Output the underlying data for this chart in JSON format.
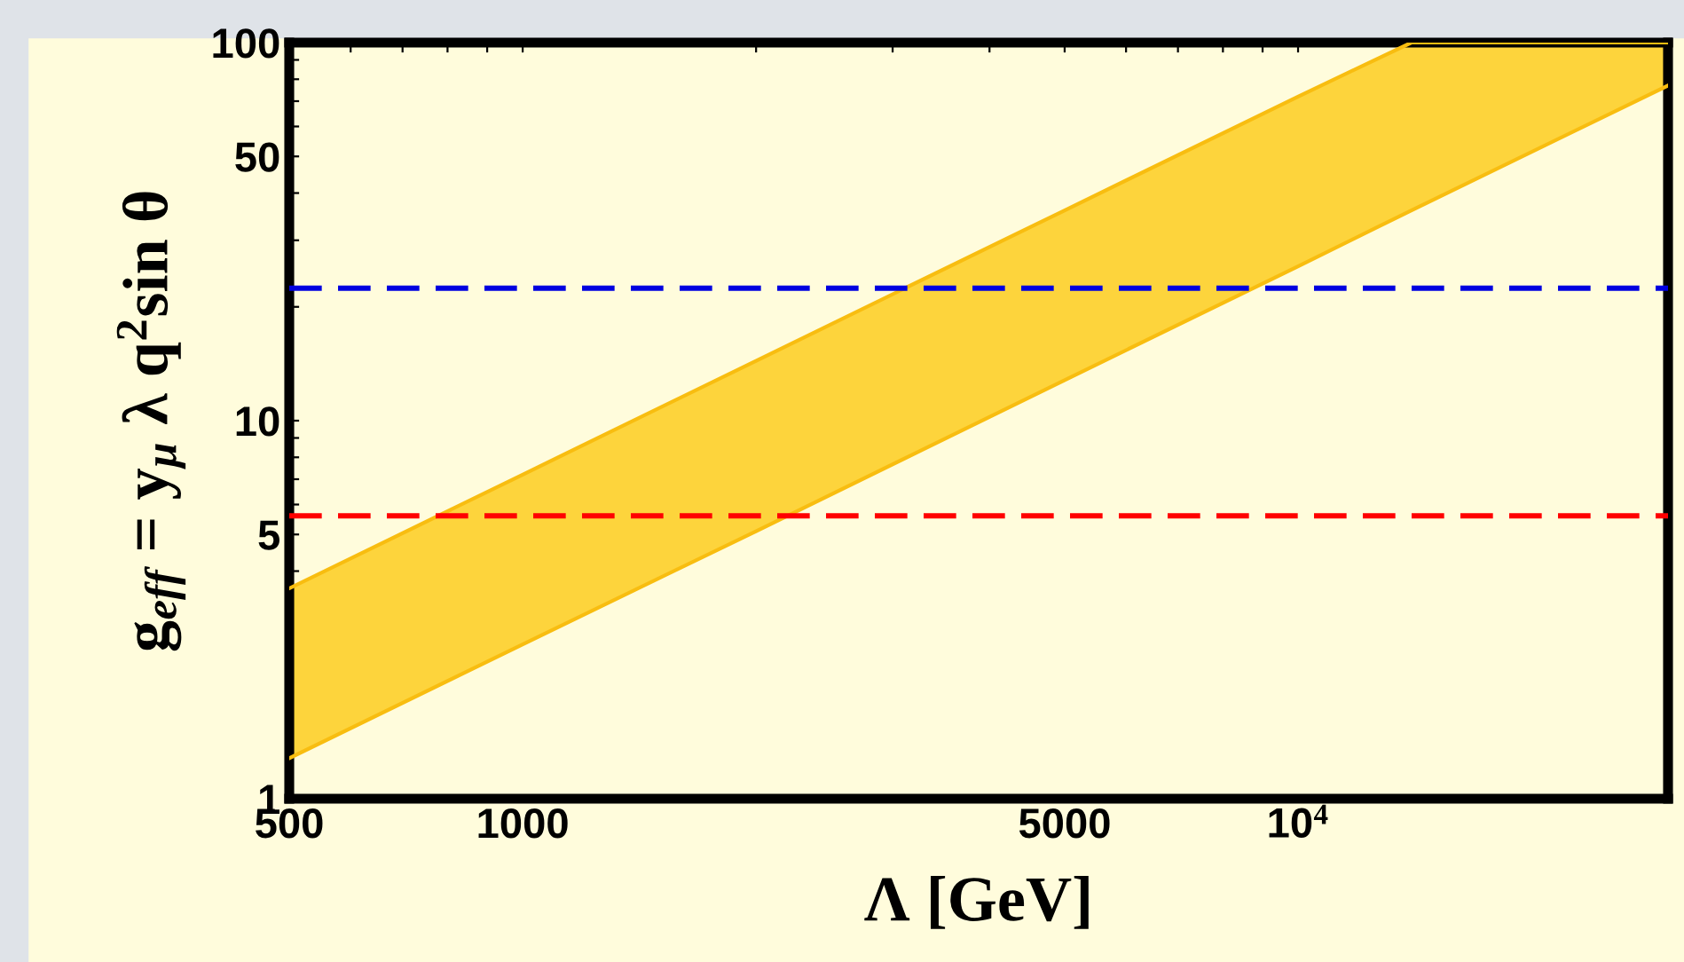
{
  "chart_data": {
    "type": "area",
    "xlabel": "Λ [GeV]",
    "ylabel": "g$_{eff}$ = y$_{μ}$ λ q$^{2}$sin θ",
    "log": "xy",
    "grid": false,
    "stacked": true,
    "xlim": [
      500,
      30000
    ],
    "ylim": [
      1,
      100
    ],
    "xticks": [
      500,
      1000,
      5000,
      {
        "value": 10000,
        "label": "10$^{4}$"
      },
      {
        "value": 600,
        "label": null
      },
      {
        "value": 700,
        "label": null
      },
      {
        "value": 800,
        "label": null
      },
      {
        "value": 900,
        "label": null
      },
      {
        "value": 2000,
        "label": null
      },
      {
        "value": 3000,
        "label": null
      },
      {
        "value": 4000,
        "label": null
      },
      {
        "value": 6000,
        "label": null
      },
      {
        "value": 7000,
        "label": null
      },
      {
        "value": 8000,
        "label": null
      },
      {
        "value": 9000,
        "label": null
      },
      {
        "value": 20000,
        "label": null
      }
    ],
    "yticks": [
      1,
      5,
      10,
      50,
      100,
      {
        "value": 2,
        "label": null
      },
      {
        "value": 3,
        "label": null
      },
      {
        "value": 4,
        "label": null
      },
      {
        "value": 6,
        "label": null
      },
      {
        "value": 7,
        "label": null
      },
      {
        "value": 8,
        "label": null
      },
      {
        "value": 9,
        "label": null
      },
      {
        "value": 20,
        "label": null
      },
      {
        "value": 30,
        "label": null
      },
      {
        "value": 40,
        "label": null
      },
      {
        "value": 60,
        "label": null
      },
      {
        "value": 70,
        "label": null
      },
      {
        "value": 80,
        "label": null
      },
      {
        "value": 90,
        "label": null
      }
    ],
    "series": [
      {
        "color": "#fffcdc",
        "x": [
          500,
          1000,
          2000,
          5000,
          10000,
          14000,
          30000
        ],
        "values": [
          1.28,
          2.56,
          5.1,
          12.8,
          25.6,
          36,
          77
        ]
      },
      {
        "color": "#fdd43c",
        "x": [
          500,
          1000,
          2000,
          5000,
          10000,
          14000,
          30000
        ],
        "values": [
          2.32,
          4.64,
          9.3,
          23.2,
          46.4,
          64,
          23
        ]
      }
    ],
    "ref_lines": [
      {
        "axis": "y",
        "value": 22.4,
        "color": "#0000e0",
        "line_style": "dashed"
      },
      {
        "axis": "y",
        "value": 5.6,
        "color": "#ff0000",
        "line_style": "dashed"
      }
    ]
  }
}
